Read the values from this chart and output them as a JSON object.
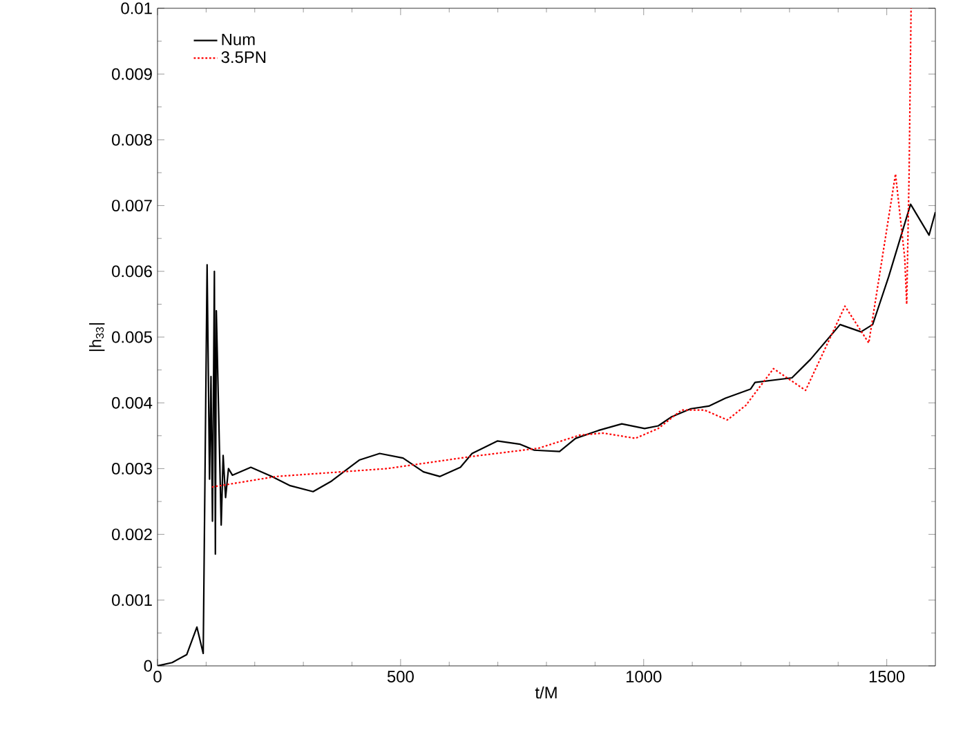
{
  "chart_data": {
    "type": "line",
    "xlabel": "t/M",
    "ylabel": "|h$_{33}$|",
    "xlim": [
      0,
      1600
    ],
    "xticks": [
      0,
      500,
      1000,
      1500
    ],
    "ylim": [
      0,
      0.01
    ],
    "yticks": [
      0,
      0.001,
      0.002,
      0.003,
      0.004,
      0.005,
      0.006,
      0.007,
      0.008,
      0.009,
      0.01
    ],
    "legend": "top left",
    "grid": false,
    "series": [
      {
        "name": "Num",
        "color": "#000000",
        "line_style": "solid",
        "x": [
          0,
          30,
          60,
          81,
          94,
          102,
          107,
          110,
          113,
          117,
          119,
          121,
          131,
          135,
          140,
          146,
          154,
          192,
          235,
          273,
          320,
          358,
          415,
          457,
          505,
          547,
          581,
          623,
          647,
          699,
          746,
          775,
          827,
          860,
          907,
          955,
          1002,
          1030,
          1058,
          1097,
          1134,
          1168,
          1220,
          1229,
          1305,
          1343,
          1404,
          1447,
          1471,
          1504,
          1549,
          1587,
          1600
        ],
        "values": [
          0,
          5e-05,
          0.00017,
          0.00059,
          0.00019,
          0.0061,
          0.00284,
          0.0044,
          0.0022,
          0.006,
          0.0017,
          0.0054,
          0.00214,
          0.0032,
          0.00256,
          0.003,
          0.0029,
          0.00302,
          0.00288,
          0.00274,
          0.00265,
          0.00281,
          0.00313,
          0.00323,
          0.00316,
          0.00295,
          0.00288,
          0.00302,
          0.00323,
          0.00342,
          0.00337,
          0.00328,
          0.00326,
          0.00346,
          0.00358,
          0.00368,
          0.00361,
          0.00365,
          0.00379,
          0.00391,
          0.00395,
          0.00407,
          0.00421,
          0.00431,
          0.00438,
          0.00466,
          0.00519,
          0.00508,
          0.00519,
          0.00592,
          0.00702,
          0.00655,
          0.0069
        ]
      },
      {
        "name": "3.5PN",
        "color": "#ff0000",
        "line_style": "dotted",
        "x": [
          112,
          244,
          358,
          472,
          642,
          784,
          869,
          917,
          983,
          1030,
          1078,
          1125,
          1172,
          1210,
          1267,
          1333,
          1414,
          1463,
          1518,
          1537,
          1541,
          1546,
          1550
        ],
        "values": [
          0.00272,
          0.00288,
          0.00294,
          0.003,
          0.00318,
          0.00331,
          0.00351,
          0.00354,
          0.00346,
          0.00361,
          0.00389,
          0.00389,
          0.00374,
          0.00396,
          0.00452,
          0.00419,
          0.00547,
          0.00491,
          0.00748,
          0.0062,
          0.0055,
          0.0075,
          0.01
        ]
      }
    ]
  }
}
